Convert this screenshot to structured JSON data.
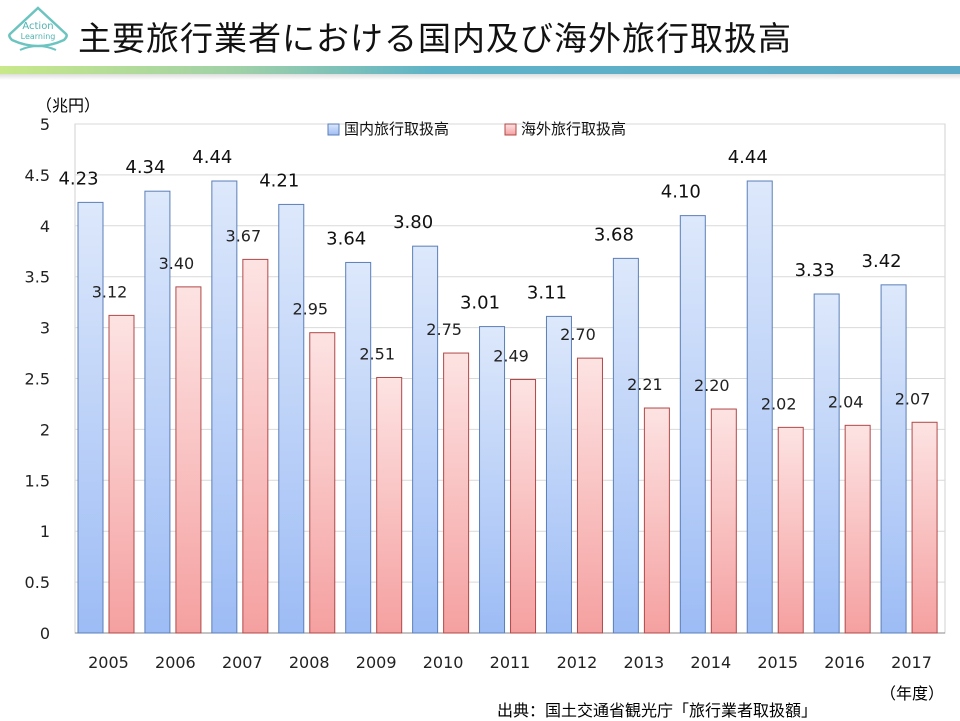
{
  "header": {
    "title": "主要旅行業者における国内及び海外旅行取扱高",
    "logo_text": "Action Learning"
  },
  "chart_data": {
    "type": "bar",
    "title": "主要旅行業者における国内及び海外旅行取扱高",
    "ylabel": "（兆円）",
    "xlabel": "（年度）",
    "ylim": [
      0,
      5
    ],
    "yticks": [
      "0",
      "0.5",
      "1",
      "1.5",
      "2",
      "2.5",
      "3",
      "3.5",
      "4",
      "4.5",
      "5"
    ],
    "categories": [
      "2005",
      "2006",
      "2007",
      "2008",
      "2009",
      "2010",
      "2011",
      "2012",
      "2013",
      "2014",
      "2015",
      "2016",
      "2017"
    ],
    "series": [
      {
        "name": "国内旅行取扱高",
        "values": [
          4.23,
          4.34,
          4.44,
          4.21,
          3.64,
          3.8,
          3.01,
          3.11,
          3.68,
          4.1,
          4.44,
          3.33,
          3.42
        ],
        "labels": [
          "4.23",
          "4.34",
          "4.44",
          "4.21",
          "3.64",
          "3.80",
          "3.01",
          "3.11",
          "3.68",
          "4.10",
          "4.44",
          "3.33",
          "3.42"
        ],
        "color_top": "#dde8fb",
        "color_bottom": "#9dbcf5",
        "stroke": "#5b7fb8"
      },
      {
        "name": "海外旅行取扱高",
        "values": [
          3.12,
          3.4,
          3.67,
          2.95,
          2.51,
          2.75,
          2.49,
          2.7,
          2.21,
          2.2,
          2.02,
          2.04,
          2.07
        ],
        "labels": [
          "3.12",
          "3.40",
          "3.67",
          "2.95",
          "2.51",
          "2.75",
          "2.49",
          "2.70",
          "2.21",
          "2.20",
          "2.02",
          "2.04",
          "2.07"
        ],
        "color_top": "#fde3e3",
        "color_bottom": "#f5a0a0",
        "stroke": "#b04848"
      }
    ],
    "grid": true,
    "legend": "top-center",
    "source": "出典：国土交通省観光庁「旅行業者取扱額」"
  }
}
